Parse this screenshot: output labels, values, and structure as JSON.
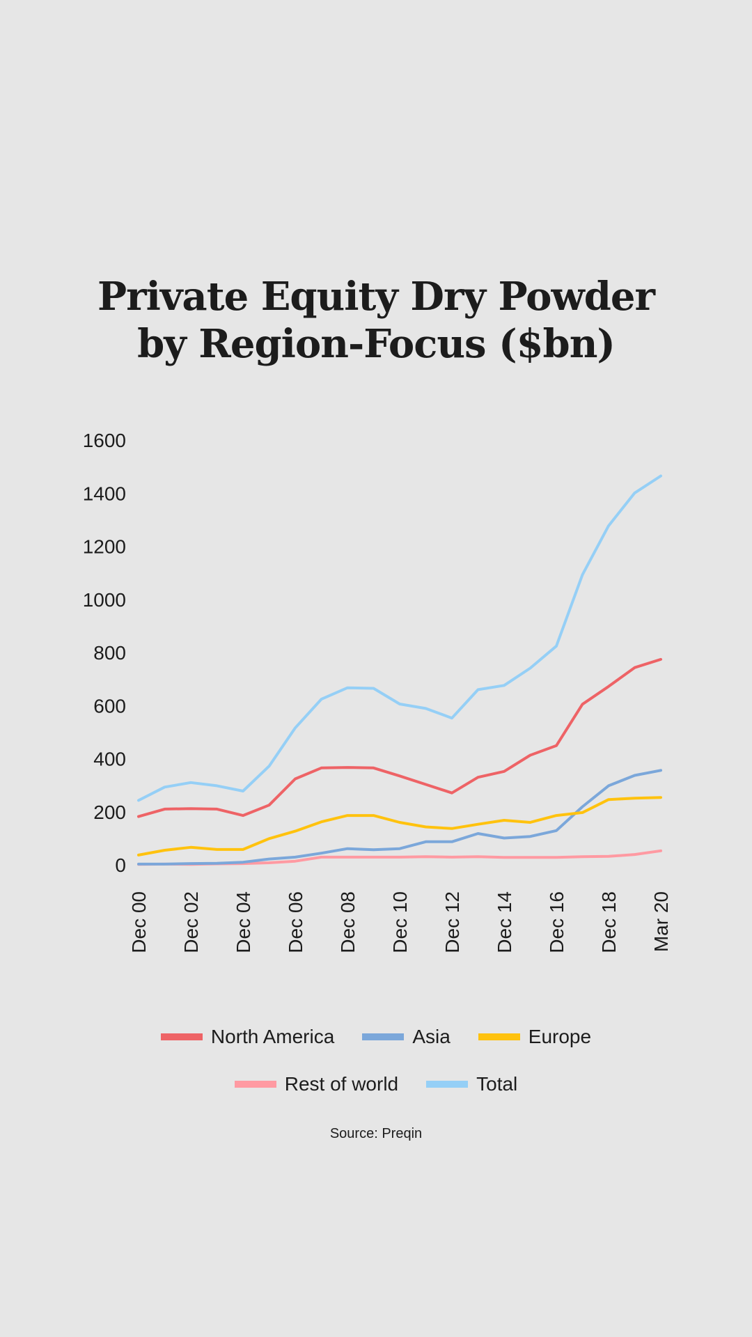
{
  "title": {
    "line1": "Private Equity Dry Powder",
    "line2": "by Region-Focus ($bn)"
  },
  "source": "Source: Preqin",
  "chart_data": {
    "type": "line",
    "title": "Private Equity Dry Powder by Region-Focus ($bn)",
    "xlabel": "",
    "ylabel": "",
    "ylim": [
      0,
      1600
    ],
    "yticks": [
      0,
      200,
      400,
      600,
      800,
      1000,
      1200,
      1400,
      1600
    ],
    "grid": false,
    "legend_position": "bottom",
    "x": [
      "Dec 00",
      "Dec 01",
      "Dec 02",
      "Dec 03",
      "Dec 04",
      "Dec 05",
      "Dec 06",
      "Dec 07",
      "Dec 08",
      "Dec 09",
      "Dec 10",
      "Dec 11",
      "Dec 12",
      "Dec 13",
      "Dec 14",
      "Dec 15",
      "Dec 16",
      "Dec 17",
      "Dec 18",
      "Dec 19",
      "Mar 20"
    ],
    "xtick_labels": [
      "Dec 00",
      "Dec 02",
      "Dec 04",
      "Dec 06",
      "Dec 08",
      "Dec 10",
      "Dec 12",
      "Dec 14",
      "Dec 16",
      "Dec 18",
      "Mar 20"
    ],
    "xtick_indices": [
      0,
      2,
      4,
      6,
      8,
      10,
      12,
      14,
      16,
      18,
      20
    ],
    "series": [
      {
        "name": "North America",
        "color": "#ee6366",
        "values": [
          182,
          210,
          212,
          210,
          186,
          225,
          324,
          365,
          367,
          365,
          335,
          303,
          271,
          330,
          352,
          413,
          449,
          605,
          672,
          743,
          774
        ]
      },
      {
        "name": "Asia",
        "color": "#7ba7da",
        "values": [
          3,
          3,
          5,
          6,
          10,
          22,
          29,
          44,
          61,
          57,
          61,
          87,
          87,
          118,
          101,
          107,
          129,
          219,
          298,
          337,
          356
        ]
      },
      {
        "name": "Europe",
        "color": "#ffc20e",
        "values": [
          37,
          55,
          66,
          58,
          58,
          99,
          127,
          162,
          186,
          186,
          160,
          143,
          137,
          153,
          168,
          160,
          186,
          197,
          246,
          251,
          254
        ]
      },
      {
        "name": "Rest of world",
        "color": "#ff9aa2",
        "values": [
          2,
          3,
          2,
          4,
          5,
          8,
          14,
          29,
          29,
          29,
          29,
          31,
          29,
          31,
          28,
          28,
          28,
          31,
          32,
          39,
          53
        ]
      },
      {
        "name": "Total",
        "color": "#95cff6",
        "values": [
          243,
          293,
          310,
          298,
          278,
          372,
          516,
          624,
          667,
          665,
          606,
          589,
          553,
          660,
          676,
          741,
          824,
          1093,
          1277,
          1401,
          1465
        ]
      }
    ]
  },
  "legend": {
    "row1": [
      {
        "label": "North America",
        "color": "#ee6366"
      },
      {
        "label": "Asia",
        "color": "#7ba7da"
      },
      {
        "label": "Europe",
        "color": "#ffc20e"
      }
    ],
    "row2": [
      {
        "label": "Rest of world",
        "color": "#ff9aa2"
      },
      {
        "label": "Total",
        "color": "#95cff6"
      }
    ]
  }
}
